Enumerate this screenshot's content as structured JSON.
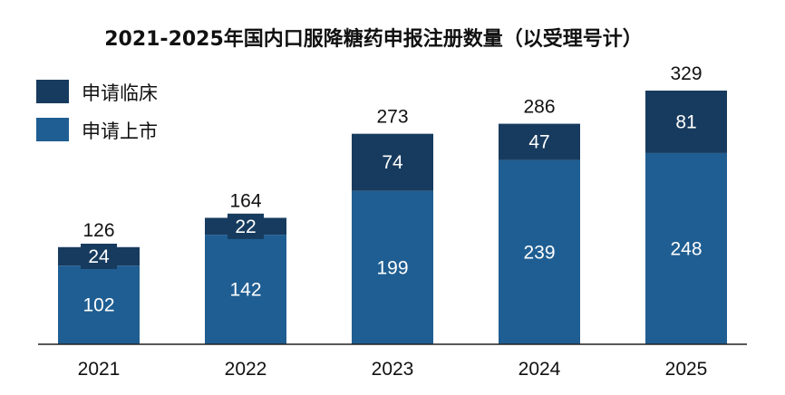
{
  "chart_data": {
    "type": "bar",
    "stacked": true,
    "title": "2021-2025年国内口服降糖药申报注册数量（以受理号计）",
    "categories": [
      "2021",
      "2022",
      "2023",
      "2024",
      "2025"
    ],
    "series": [
      {
        "name": "申请上市",
        "values": [
          102,
          142,
          199,
          239,
          248
        ],
        "color": "#1f5e92"
      },
      {
        "name": "申请临床",
        "values": [
          24,
          22,
          74,
          47,
          81
        ],
        "color": "#173b5e"
      }
    ],
    "totals": [
      126,
      164,
      273,
      286,
      329
    ],
    "xlabel": "",
    "ylabel": "",
    "ylim": [
      0,
      329
    ],
    "grid": false,
    "legend_position": "top-left"
  }
}
